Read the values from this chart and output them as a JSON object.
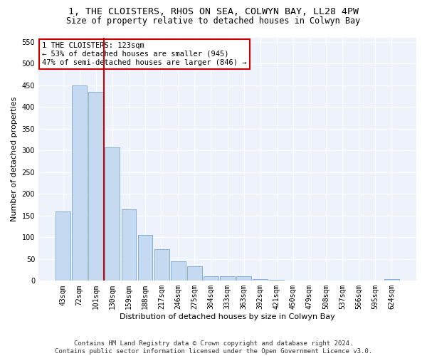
{
  "title1": "1, THE CLOISTERS, RHOS ON SEA, COLWYN BAY, LL28 4PW",
  "title2": "Size of property relative to detached houses in Colwyn Bay",
  "xlabel": "Distribution of detached houses by size in Colwyn Bay",
  "ylabel": "Number of detached properties",
  "categories": [
    "43sqm",
    "72sqm",
    "101sqm",
    "130sqm",
    "159sqm",
    "188sqm",
    "217sqm",
    "246sqm",
    "275sqm",
    "304sqm",
    "333sqm",
    "363sqm",
    "392sqm",
    "421sqm",
    "450sqm",
    "479sqm",
    "508sqm",
    "537sqm",
    "566sqm",
    "595sqm",
    "624sqm"
  ],
  "values": [
    160,
    450,
    435,
    307,
    165,
    105,
    72,
    45,
    33,
    10,
    10,
    10,
    4,
    2,
    1,
    1,
    1,
    1,
    1,
    1,
    4
  ],
  "bar_color": "#c5d9f1",
  "bar_edge_color": "#7ba7d4",
  "vline_color": "#cc0000",
  "vline_x": 2.5,
  "annotation_text": "1 THE CLOISTERS: 123sqm\n← 53% of detached houses are smaller (945)\n47% of semi-detached houses are larger (846) →",
  "annotation_box_color": "white",
  "annotation_border_color": "#cc0000",
  "ylim": [
    0,
    560
  ],
  "yticks": [
    0,
    50,
    100,
    150,
    200,
    250,
    300,
    350,
    400,
    450,
    500,
    550
  ],
  "footer": "Contains HM Land Registry data © Crown copyright and database right 2024.\nContains public sector information licensed under the Open Government Licence v3.0.",
  "bg_color": "#eef2fb",
  "grid_color": "#ffffff",
  "title1_fontsize": 9.5,
  "title2_fontsize": 8.5,
  "tick_fontsize": 7,
  "ylabel_fontsize": 8,
  "xlabel_fontsize": 8,
  "annotation_fontsize": 7.5,
  "footer_fontsize": 6.5
}
